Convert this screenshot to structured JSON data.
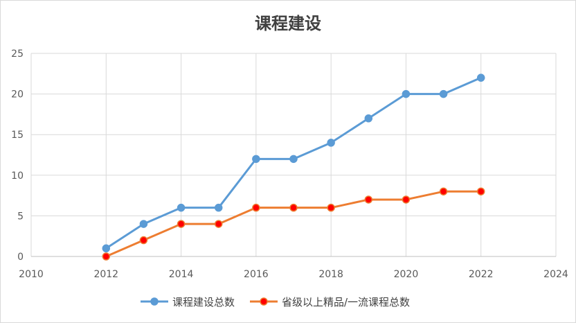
{
  "chart_data": {
    "type": "line",
    "title": "课程建设",
    "xlabel": "",
    "ylabel": "",
    "xlim": [
      2010,
      2024
    ],
    "ylim": [
      0,
      25
    ],
    "x_ticks": [
      "2010",
      "2012",
      "2014",
      "2016",
      "2018",
      "2020",
      "2022",
      "2024"
    ],
    "y_ticks": [
      "0",
      "5",
      "10",
      "15",
      "20",
      "25"
    ],
    "grid": true,
    "legend_position": "bottom",
    "series": [
      {
        "name": "课程建设总数",
        "color": "#5b9bd5",
        "marker_fill": "#5b9bd5",
        "x": [
          2012,
          2013,
          2014,
          2015,
          2016,
          2017,
          2018,
          2019,
          2020,
          2021,
          2022
        ],
        "values": [
          1,
          4,
          6,
          6,
          12,
          12,
          14,
          17,
          20,
          20,
          22
        ]
      },
      {
        "name": "省级以上精品/一流课程总数",
        "color": "#ed7d31",
        "marker_fill": "#ff0000",
        "x": [
          2012,
          2013,
          2014,
          2015,
          2016,
          2017,
          2018,
          2019,
          2020,
          2021,
          2022
        ],
        "values": [
          0,
          2,
          4,
          4,
          6,
          6,
          6,
          7,
          7,
          8,
          8
        ]
      }
    ]
  }
}
